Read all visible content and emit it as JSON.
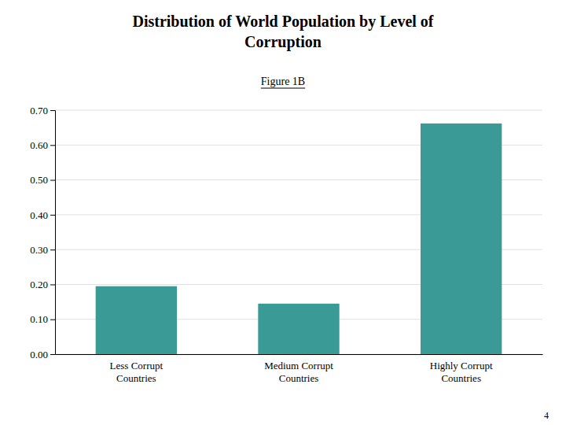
{
  "chart_data": {
    "type": "bar",
    "title": "Distribution of World Population by Level of\nCorruption",
    "subtitle": "Figure 1B",
    "annotations": [
      "4"
    ],
    "categories": [
      "Less Corrupt\nCountries",
      "Medium Corrupt\nCountries",
      "Highly Corrupt\nCountries"
    ],
    "values": [
      0.195,
      0.145,
      0.662
    ],
    "color": "#3a9a96",
    "ylim": [
      0.0,
      0.7
    ],
    "yticks": [
      {
        "value": 0.0,
        "label": "0.00"
      },
      {
        "value": 0.1,
        "label": "0.10"
      },
      {
        "value": 0.2,
        "label": "0.20"
      },
      {
        "value": 0.3,
        "label": "0.30"
      },
      {
        "value": 0.4,
        "label": "0.40"
      },
      {
        "value": 0.5,
        "label": "0.50"
      },
      {
        "value": 0.6,
        "label": "0.60"
      },
      {
        "value": 0.7,
        "label": "0.70"
      }
    ],
    "grid": true
  }
}
